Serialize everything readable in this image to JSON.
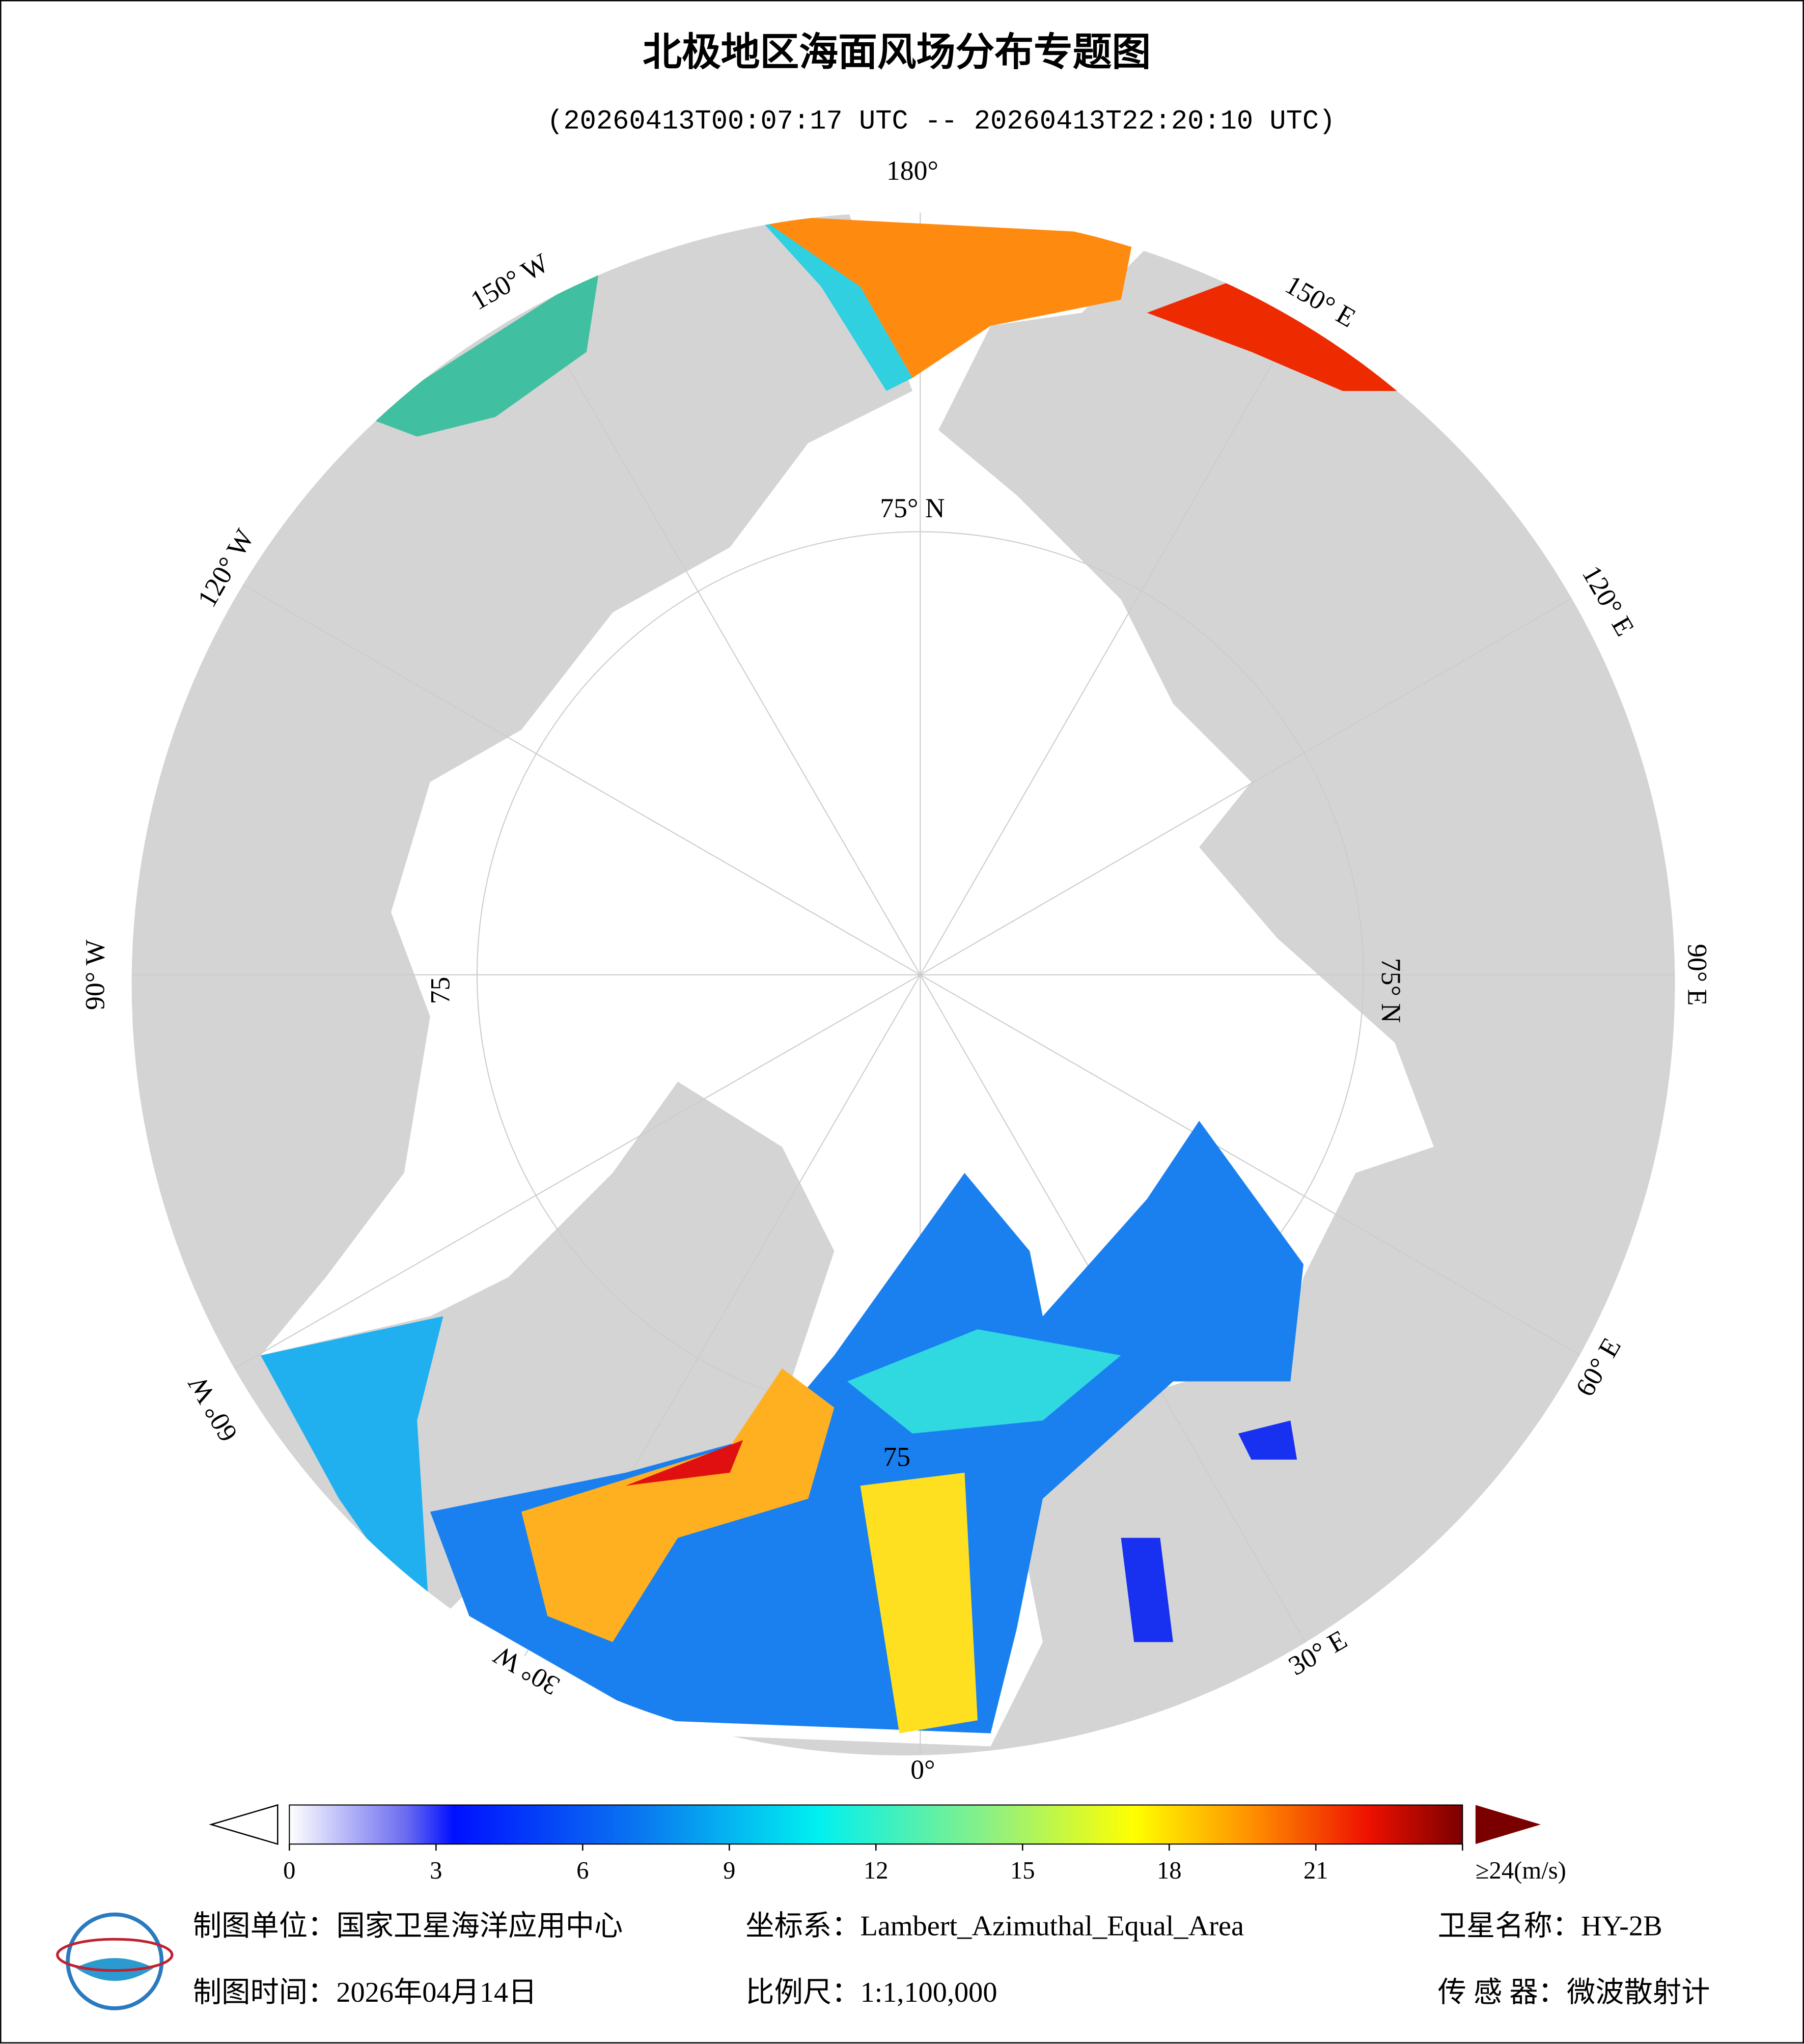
{
  "header": {
    "title": "北极地区海面风场分布专题图",
    "subtitle": "(20260413T00:07:17 UTC -- 20260413T22:20:10 UTC)"
  },
  "map": {
    "graticule_labels": [
      "180°",
      "150° W",
      "150° E",
      "120° W",
      "120° E",
      "90° W",
      "90° E",
      "60° W",
      "60° E",
      "30° W",
      "30° E",
      "0°",
      "75° N",
      "75° N",
      "75",
      "75"
    ]
  },
  "colorbar": {
    "lim": [
      0,
      24
    ],
    "ticks": [
      0,
      3,
      6,
      9,
      12,
      15,
      18,
      21,
      {
        "value": 24,
        "label": "≥24(m/s)"
      }
    ]
  },
  "footer": {
    "items": [
      "制图单位：国家卫星海洋应用中心",
      "坐标系：Lambert_Azimuthal_Equal_Area",
      "卫星名称：HY-2B",
      "制图时间：2026年04月14日",
      "比例尺：1:1,100,000",
      "传 感 器：微波散射计"
    ]
  }
}
